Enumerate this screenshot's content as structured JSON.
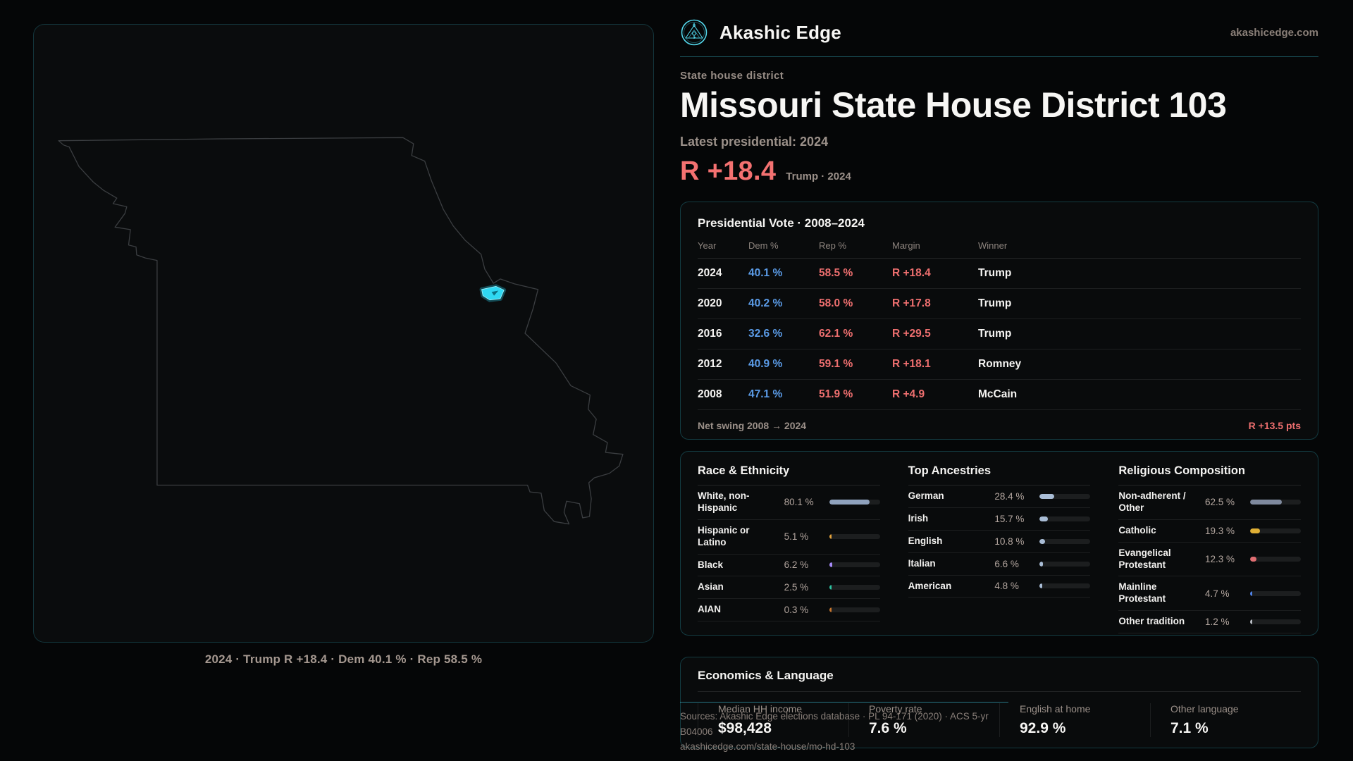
{
  "brand": {
    "name": "Akashic Edge",
    "domain": "akashicedge.com"
  },
  "header": {
    "kicker": "State house district",
    "title": "Missouri State House District 103",
    "latest_label": "Latest presidential: 2024",
    "margin_value": "R +18.4",
    "margin_context": "Trump · 2024"
  },
  "map": {
    "caption": "2024 · Trump R +18.4 · Dem 40.1 % · Rep 58.5 %",
    "highlight_color": "#2fd8f2",
    "outline_color": "#3b3e41"
  },
  "presidential": {
    "title": "Presidential Vote · 2008–2024",
    "columns": [
      "Year",
      "Dem %",
      "Rep %",
      "Margin",
      "Winner"
    ],
    "rows": [
      {
        "year": "2024",
        "dem": "40.1 %",
        "rep": "58.5 %",
        "margin": "R +18.4",
        "winner": "Trump"
      },
      {
        "year": "2020",
        "dem": "40.2 %",
        "rep": "58.0 %",
        "margin": "R +17.8",
        "winner": "Trump"
      },
      {
        "year": "2016",
        "dem": "32.6 %",
        "rep": "62.1 %",
        "margin": "R +29.5",
        "winner": "Trump"
      },
      {
        "year": "2012",
        "dem": "40.9 %",
        "rep": "59.1 %",
        "margin": "R +18.1",
        "winner": "Romney"
      },
      {
        "year": "2008",
        "dem": "47.1 %",
        "rep": "51.9 %",
        "margin": "R +4.9",
        "winner": "McCain"
      }
    ],
    "net_swing_label": "Net swing 2008 → 2024",
    "net_swing_value": "R +13.5 pts"
  },
  "demographics": {
    "race": {
      "title": "Race & Ethnicity",
      "rows": [
        {
          "label": "White, non-Hispanic",
          "value": "80.1 %",
          "pct": 80.1,
          "color": "#8fa2bd"
        },
        {
          "label": "Hispanic or Latino",
          "value": "5.1 %",
          "pct": 5.1,
          "color": "#e5a33c"
        },
        {
          "label": "Black",
          "value": "6.2 %",
          "pct": 6.2,
          "color": "#a78bfa"
        },
        {
          "label": "Asian",
          "value": "2.5 %",
          "pct": 2.5,
          "color": "#2dc5a2"
        },
        {
          "label": "AIAN",
          "value": "0.3 %",
          "pct": 0.3,
          "color": "#c9772e"
        }
      ]
    },
    "ancestries": {
      "title": "Top Ancestries",
      "rows": [
        {
          "label": "German",
          "value": "28.4 %",
          "pct": 28.4,
          "color": "#a9bdd6"
        },
        {
          "label": "Irish",
          "value": "15.7 %",
          "pct": 15.7,
          "color": "#a9bdd6"
        },
        {
          "label": "English",
          "value": "10.8 %",
          "pct": 10.8,
          "color": "#a9bdd6"
        },
        {
          "label": "Italian",
          "value": "6.6 %",
          "pct": 6.6,
          "color": "#a9bdd6"
        },
        {
          "label": "American",
          "value": "4.8 %",
          "pct": 4.8,
          "color": "#a9bdd6"
        }
      ]
    },
    "religion": {
      "title": "Religious Composition",
      "rows": [
        {
          "label": "Non-adherent / Other",
          "value": "62.5 %",
          "pct": 62.5,
          "color": "#7f8a9e"
        },
        {
          "label": "Catholic",
          "value": "19.3 %",
          "pct": 19.3,
          "color": "#dfaf35"
        },
        {
          "label": "Evangelical Protestant",
          "value": "12.3 %",
          "pct": 12.3,
          "color": "#e06e72"
        },
        {
          "label": "Mainline Protestant",
          "value": "4.7 %",
          "pct": 4.7,
          "color": "#4f83e8"
        },
        {
          "label": "Other tradition",
          "value": "1.2 %",
          "pct": 1.2,
          "color": "#b9bdc4"
        }
      ]
    }
  },
  "economics": {
    "title": "Economics & Language",
    "stats": [
      {
        "label": "Median HH income",
        "value": "$98,428"
      },
      {
        "label": "Poverty rate",
        "value": "7.6 %"
      },
      {
        "label": "English at home",
        "value": "92.9 %"
      },
      {
        "label": "Other language",
        "value": "7.1 %"
      }
    ]
  },
  "footer": {
    "line1": "Sources: Akashic Edge elections database · PL 94-171 (2020) · ACS 5-yr B04006",
    "line2": "akashicedge.com/state-house/mo-hd-103"
  },
  "colors": {
    "accent_cyan": "#2fd8f2",
    "dem_blue": "#5b9ce8",
    "rep_red": "#ee6f6f",
    "margin_big_red": "#f47171",
    "muted_text": "#9b9089",
    "page_bg": "#050607"
  }
}
